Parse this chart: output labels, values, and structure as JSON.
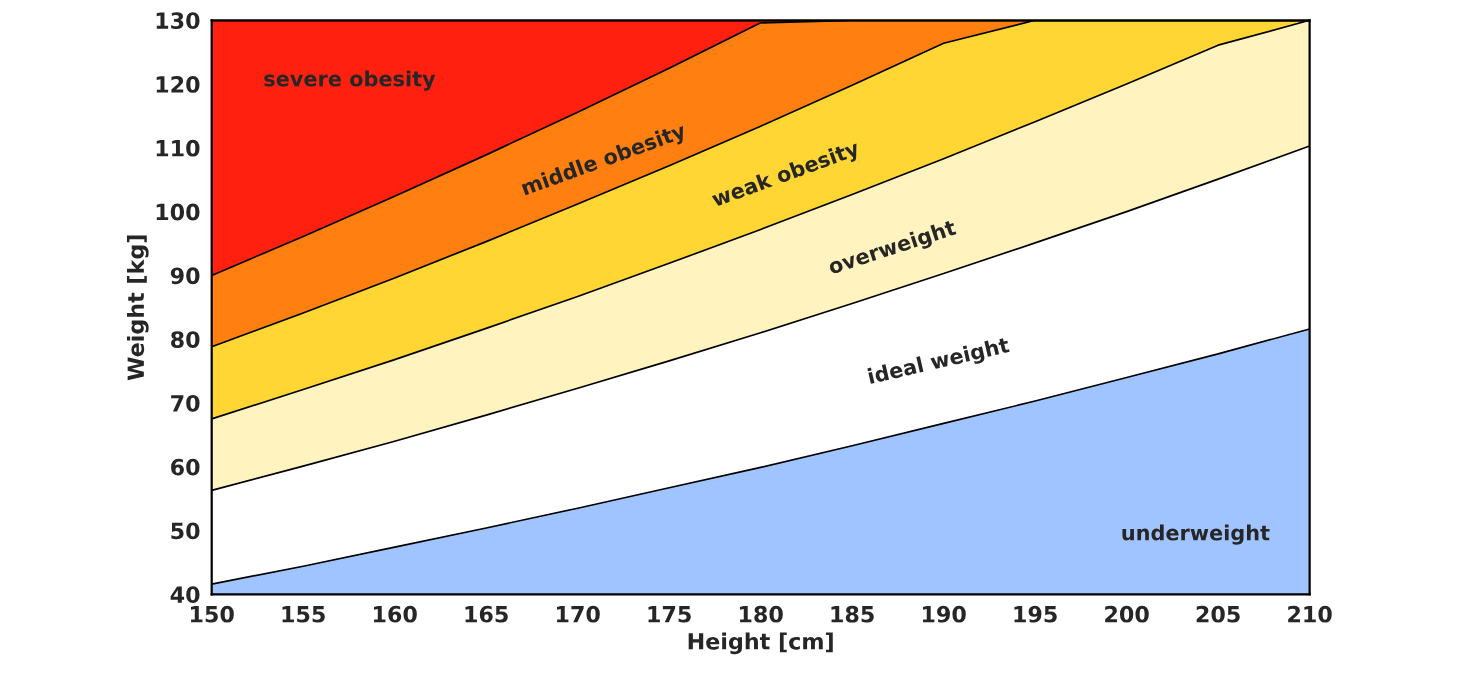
{
  "chart_data": {
    "type": "area",
    "xlabel": "Height [cm]",
    "ylabel": "Weight [kg]",
    "x": [
      150,
      155,
      160,
      165,
      170,
      175,
      180,
      185,
      190,
      195,
      200,
      205,
      210
    ],
    "series": [
      {
        "name": "severe obesity",
        "color": "#ff2010",
        "values": [
          130,
          130,
          130,
          130,
          130,
          130,
          130,
          130,
          130,
          130,
          130,
          130,
          130
        ]
      },
      {
        "name": "middle obesity",
        "color": "#ff8010",
        "values": [
          90.0,
          96.1,
          102.4,
          108.9,
          115.6,
          122.5,
          129.6,
          130,
          130,
          130,
          130,
          130,
          130
        ]
      },
      {
        "name": "weak obesity",
        "color": "#ffd633",
        "values": [
          78.8,
          84.1,
          89.6,
          95.3,
          101.2,
          107.2,
          113.4,
          119.8,
          126.4,
          130,
          130,
          130,
          130
        ]
      },
      {
        "name": "overweight",
        "color": "#fff3c0",
        "values": [
          67.5,
          72.1,
          76.8,
          81.7,
          86.7,
          91.9,
          97.2,
          102.7,
          108.3,
          114.1,
          120.0,
          126.1,
          130
        ]
      },
      {
        "name": "ideal weight",
        "color": "#ffffff",
        "values": [
          56.3,
          60.1,
          64.0,
          68.1,
          72.3,
          76.6,
          81.0,
          85.6,
          90.3,
          95.1,
          100.0,
          105.1,
          110.3
        ]
      },
      {
        "name": "underweight",
        "color": "#a0c4ff",
        "values": [
          41.6,
          44.4,
          47.4,
          50.4,
          53.5,
          56.7,
          59.9,
          63.3,
          66.8,
          70.3,
          74.0,
          77.7,
          81.6
        ]
      }
    ],
    "xlim": [
      150,
      210
    ],
    "ylim": [
      40,
      130
    ],
    "xticks": [
      150,
      155,
      160,
      165,
      170,
      175,
      180,
      185,
      190,
      195,
      200,
      205,
      210
    ],
    "yticks": [
      40,
      50,
      60,
      70,
      80,
      90,
      100,
      110,
      120,
      130
    ]
  }
}
